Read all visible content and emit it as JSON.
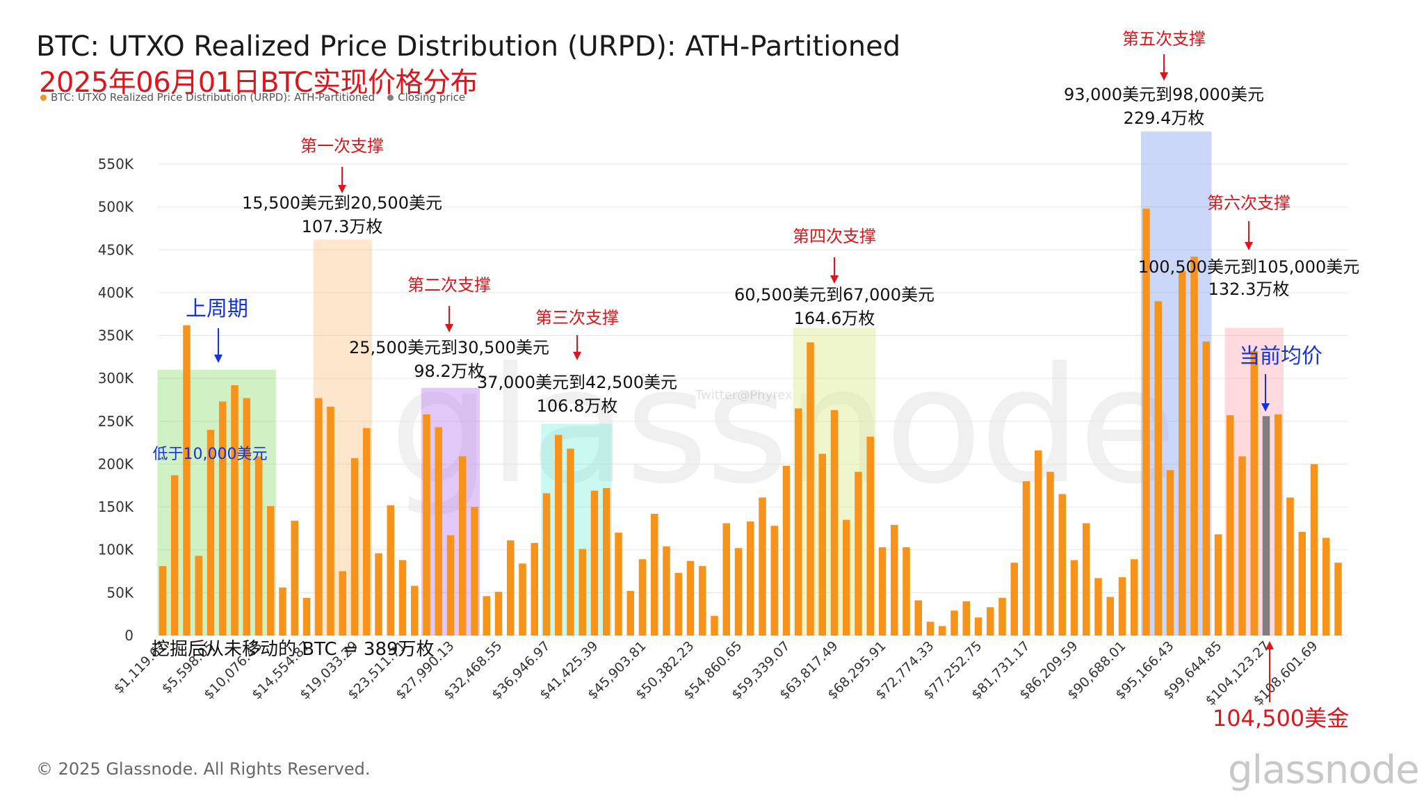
{
  "header": {
    "title": "BTC: UTXO Realized Price Distribution (URPD): ATH-Partitioned",
    "subtitle_cn": "2025年06月01日BTC实现价格分布"
  },
  "legend": [
    {
      "label": "BTC: UTXO Realized Price Distribution (URPD): ATH-Partitioned",
      "color": "#f7931a"
    },
    {
      "label": "Closing price",
      "color": "#7f7f7f"
    }
  ],
  "footer": {
    "copyright": "© 2025 Glassnode. All Rights Reserved.",
    "brand": "glassnode",
    "watermark": "glassnode",
    "twitter_watermark": "Twitter@Phyrex"
  },
  "chart_data": {
    "type": "bar",
    "y_ticks": [
      "0",
      "50K",
      "100K",
      "150K",
      "200K",
      "250K",
      "300K",
      "350K",
      "400K",
      "450K",
      "500K",
      "550K"
    ],
    "ylim": [
      0,
      550000
    ],
    "x_tick_labels": [
      "$1,119.67",
      "$5,598.05",
      "$10,076.43",
      "$14,554.87",
      "$19,033.29",
      "$23,511.71",
      "$27,990.13",
      "$32,468.55",
      "$36,946.97",
      "$41,425.39",
      "$45,903.81",
      "$50,382.23",
      "$54,860.65",
      "$59,339.07",
      "$63,817.49",
      "$68,295.91",
      "$72,774.33",
      "$77,252.75",
      "$81,731.17",
      "$86,209.59",
      "$90,688.01",
      "$95,166.43",
      "$99,644.85",
      "$104,123.27",
      "$108,601.69"
    ],
    "values": [
      81000,
      187000,
      362000,
      93000,
      240000,
      273000,
      292000,
      277000,
      209000,
      151000,
      56000,
      134000,
      44000,
      277000,
      267000,
      75000,
      207000,
      242000,
      96000,
      152000,
      88000,
      58000,
      258000,
      243000,
      117000,
      209000,
      150000,
      46000,
      51000,
      111000,
      84000,
      108000,
      166000,
      234000,
      218000,
      101000,
      169000,
      172000,
      120000,
      52000,
      89000,
      142000,
      104000,
      73000,
      87000,
      81000,
      23000,
      131000,
      102000,
      133000,
      161000,
      128000,
      198000,
      265000,
      342000,
      212000,
      263000,
      135000,
      191000,
      232000,
      103000,
      129000,
      103000,
      41000,
      16000,
      11000,
      29000,
      40000,
      21000,
      33000,
      44000,
      85000,
      180000,
      216000,
      191000,
      165000,
      88000,
      131000,
      67000,
      45000,
      68000,
      89000,
      498000,
      390000,
      193000,
      425000,
      442000,
      343000,
      118000,
      257000,
      209000,
      332000,
      256000,
      258000,
      161000,
      121000,
      200000,
      114000,
      85000
    ],
    "closing_price_bar_index": 92,
    "bar_color": "#f7931a",
    "closing_color": "#7f7f7f",
    "regions": [
      {
        "from": 0,
        "to": 9,
        "color": "rgba(110,210,70,0.32)",
        "top": 310000
      },
      {
        "from": 13,
        "to": 17,
        "color": "rgba(250,190,120,0.38)",
        "top": 462000
      },
      {
        "from": 22,
        "to": 26,
        "color": "rgba(175,110,240,0.38)",
        "top": 289000
      },
      {
        "from": 32,
        "to": 37,
        "color": "rgba(90,235,215,0.32)",
        "top": 247000
      },
      {
        "from": 53,
        "to": 59,
        "color": "rgba(220,235,140,0.45)",
        "top": 359000
      },
      {
        "from": 82,
        "to": 87,
        "color": "rgba(115,150,240,0.38)",
        "top": 588000
      },
      {
        "from": 89,
        "to": 93,
        "color": "rgba(255,160,170,0.38)",
        "top": 359000
      }
    ],
    "annotations": {
      "support1": {
        "title": "第一次支撑",
        "range": "15,500美元到20,500美元",
        "amount": "107.3万枚"
      },
      "support2": {
        "title": "第二次支撑",
        "range": "25,500美元到30,500美元",
        "amount": "98.2万枚"
      },
      "support3": {
        "title": "第三次支撑",
        "range": "37,000美元到42,500美元",
        "amount": "106.8万枚"
      },
      "support4": {
        "title": "第四次支撑",
        "range": "60,500美元到67,000美元",
        "amount": "164.6万枚"
      },
      "support5": {
        "title": "第五次支撑",
        "range": "93,000美元到98,000美元",
        "amount": "229.4万枚"
      },
      "support6": {
        "title": "第六次支撑",
        "range": "100,500美元到105,000美元",
        "amount": "132.3万枚"
      },
      "last_cycle": "上周期",
      "below_10k": "低于10,000美元",
      "unmoved": "挖掘后从未移动的 BTC = 389万枚",
      "current_avg": "当前均价",
      "current_price": "104,500美金"
    }
  }
}
